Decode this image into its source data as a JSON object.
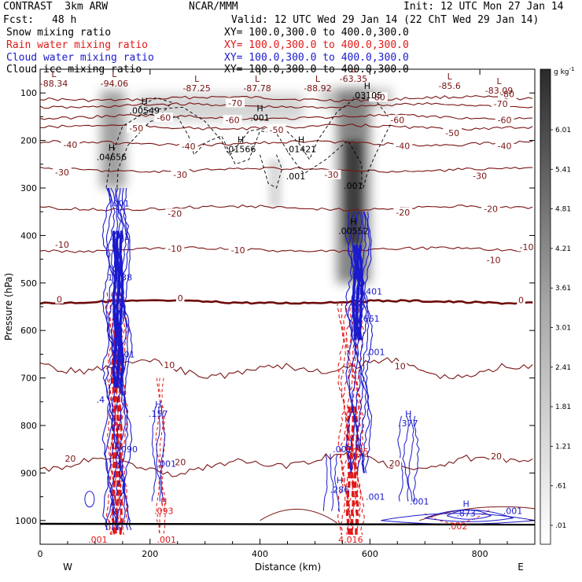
{
  "header": {
    "model": "CONTRAST  3km ARW",
    "center": "NCAR/MMM",
    "init": "Init: 12 UTC Mon 27 Jan 14",
    "fcst_label": "Fcst:",
    "fcst_value": "48 h",
    "valid": "Valid: 12 UTC Wed 29 Jan 14 (22 ChT Wed 29 Jan 14)"
  },
  "legend": {
    "items": [
      {
        "label": "Snow mixing ratio",
        "xy": "XY= 100.0,300.0 to 400.0,300.0",
        "color": "#000000"
      },
      {
        "label": "Rain water mixing ratio",
        "xy": "XY= 100.0,300.0 to 400.0,300.0",
        "color": "#e01818"
      },
      {
        "label": "Cloud water mixing ratio",
        "xy": "XY= 100.0,300.0 to 400.0,300.0",
        "color": "#1a1acc"
      },
      {
        "label": "Cloud ice mixing ratio",
        "xy": "XY= 100.0,300.0 to 400.0,300.0",
        "color": "#000000"
      }
    ]
  },
  "colors": {
    "temperature": "#7a1414",
    "freezing": "#6e0a0a",
    "rain": "#e01818",
    "cloud": "#1a1acc",
    "ice": "#000000"
  },
  "chart_data": {
    "type": "contour-cross-section",
    "xlabel": "Distance (km)",
    "ylabel": "Pressure (hPa)",
    "xlim": [
      0,
      900
    ],
    "ylim": [
      1050,
      50
    ],
    "x_ticks": [
      0,
      200,
      400,
      600,
      800
    ],
    "y_ticks": [
      100,
      200,
      300,
      400,
      500,
      600,
      700,
      800,
      900,
      1000
    ],
    "x_end_labels": {
      "west": "W",
      "east": "E"
    },
    "colorbar": {
      "unit": "g kg",
      "unit_sup": "-1",
      "ticks": [
        ".01",
        ".61",
        "1.21",
        "1.81",
        "2.41",
        "3.01",
        "3.61",
        "4.21",
        "4.81",
        "5.41",
        "6.01"
      ]
    },
    "temperature_contours": {
      "levels": [
        -80,
        -70,
        -60,
        -50,
        -40,
        -30,
        -20,
        -10,
        0,
        10,
        20
      ],
      "labels": [
        {
          "text": "-80",
          "x": 850,
          "p": 103
        },
        {
          "text": "-80",
          "x": 615,
          "p": 110
        },
        {
          "text": "-70",
          "x": 355,
          "p": 122
        },
        {
          "text": "-70",
          "x": 838,
          "p": 124
        },
        {
          "text": "-60",
          "x": 225,
          "p": 153
        },
        {
          "text": "-60",
          "x": 350,
          "p": 158
        },
        {
          "text": "-60",
          "x": 650,
          "p": 158
        },
        {
          "text": "-60",
          "x": 845,
          "p": 158
        },
        {
          "text": "-50",
          "x": 175,
          "p": 175
        },
        {
          "text": "-50",
          "x": 430,
          "p": 178
        },
        {
          "text": "-50",
          "x": 750,
          "p": 185
        },
        {
          "text": "-40",
          "x": 55,
          "p": 210
        },
        {
          "text": "-40",
          "x": 270,
          "p": 213
        },
        {
          "text": "-40",
          "x": 660,
          "p": 212
        },
        {
          "text": "-40",
          "x": 845,
          "p": 212
        },
        {
          "text": "-30",
          "x": 40,
          "p": 268
        },
        {
          "text": "-30",
          "x": 255,
          "p": 273
        },
        {
          "text": "-30",
          "x": 530,
          "p": 273
        },
        {
          "text": "-30",
          "x": 800,
          "p": 275
        },
        {
          "text": "-20",
          "x": 245,
          "p": 355
        },
        {
          "text": "-20",
          "x": 660,
          "p": 352
        },
        {
          "text": "-20",
          "x": 820,
          "p": 345
        },
        {
          "text": "-10",
          "x": 40,
          "p": 420
        },
        {
          "text": "-10",
          "x": 245,
          "p": 428
        },
        {
          "text": "-10",
          "x": 360,
          "p": 432
        },
        {
          "text": "-10",
          "x": 885,
          "p": 425
        },
        {
          "text": "-10",
          "x": 825,
          "p": 452
        },
        {
          "text": "0",
          "x": 35,
          "p": 535
        },
        {
          "text": "0",
          "x": 255,
          "p": 533
        },
        {
          "text": "0",
          "x": 875,
          "p": 537
        },
        {
          "text": "10",
          "x": 235,
          "p": 673
        },
        {
          "text": "10",
          "x": 655,
          "p": 676
        },
        {
          "text": "20",
          "x": 55,
          "p": 870
        },
        {
          "text": "20",
          "x": 255,
          "p": 878
        },
        {
          "text": "20",
          "x": 645,
          "p": 880
        },
        {
          "text": "20",
          "x": 830,
          "p": 865
        }
      ]
    },
    "extrema_labels": [
      {
        "mark": "L",
        "text": "-88.34",
        "x": 25,
        "p": 80,
        "series": "temperature"
      },
      {
        "mark": "L",
        "text": "-94.06",
        "x": 135,
        "p": 80,
        "series": "temperature"
      },
      {
        "mark": "L",
        "text": "-87.25",
        "x": 285,
        "p": 90,
        "series": "temperature"
      },
      {
        "mark": "L",
        "text": "-87.78",
        "x": 395,
        "p": 90,
        "series": "temperature"
      },
      {
        "mark": "L",
        "text": "-88.92",
        "x": 505,
        "p": 90,
        "series": "temperature"
      },
      {
        "mark": "L",
        "text": "-63.35",
        "x": 570,
        "p": 70,
        "series": "temperature"
      },
      {
        "mark": "L",
        "text": "-85.6",
        "x": 745,
        "p": 85,
        "series": "temperature"
      },
      {
        "mark": "L",
        "text": "-83.09",
        "x": 835,
        "p": 95,
        "series": "temperature"
      },
      {
        "mark": "H",
        "text": ".00549",
        "x": 190,
        "p": 137,
        "series": "ice"
      },
      {
        "mark": "H",
        "text": ".001",
        "x": 400,
        "p": 152,
        "series": "ice"
      },
      {
        "mark": "H",
        "text": ".03105",
        "x": 595,
        "p": 105,
        "series": "ice"
      },
      {
        "mark": "H",
        "text": ".01566",
        "x": 365,
        "p": 218,
        "series": "ice"
      },
      {
        "mark": "H",
        "text": ".01421",
        "x": 475,
        "p": 218,
        "series": "ice"
      },
      {
        "mark": "H",
        "text": ".04656",
        "x": 130,
        "p": 235,
        "series": "ice"
      },
      {
        "mark": "",
        "text": ".001",
        "x": 465,
        "p": 275,
        "series": "ice"
      },
      {
        "mark": "",
        "text": ".001",
        "x": 570,
        "p": 295,
        "series": "ice"
      },
      {
        "mark": "H",
        "text": ".00552",
        "x": 570,
        "p": 390,
        "series": "ice"
      },
      {
        "mark": "",
        "text": ".001",
        "x": 145,
        "p": 332,
        "series": "cloud"
      },
      {
        "mark": "",
        "text": ".001",
        "x": 145,
        "p": 403,
        "series": "cloud"
      },
      {
        "mark": "",
        "text": "1.138",
        "x": 145,
        "p": 488,
        "series": "cloud"
      },
      {
        "mark": "",
        "text": ".001",
        "x": 155,
        "p": 650,
        "series": "cloud"
      },
      {
        "mark": "",
        "text": ".4",
        "x": 110,
        "p": 745,
        "series": "cloud"
      },
      {
        "mark": "",
        "text": ".090",
        "x": 160,
        "p": 850,
        "series": "cloud"
      },
      {
        "mark": "H",
        "text": ".157",
        "x": 215,
        "p": 775,
        "series": "cloud"
      },
      {
        "mark": "",
        "text": ".001",
        "x": 230,
        "p": 880,
        "series": "cloud"
      },
      {
        "mark": "",
        "text": "1.401",
        "x": 600,
        "p": 518,
        "series": "cloud"
      },
      {
        "mark": "",
        "text": ".661",
        "x": 600,
        "p": 575,
        "series": "cloud"
      },
      {
        "mark": "",
        "text": ".001",
        "x": 610,
        "p": 645,
        "series": "cloud"
      },
      {
        "mark": "H",
        "text": ".377",
        "x": 670,
        "p": 795,
        "series": "cloud"
      },
      {
        "mark": "",
        "text": ".001",
        "x": 550,
        "p": 850,
        "series": "cloud"
      },
      {
        "mark": "",
        "text": ".095",
        "x": 580,
        "p": 855,
        "series": "rain"
      },
      {
        "mark": "H",
        "text": ".286",
        "x": 545,
        "p": 935,
        "series": "cloud"
      },
      {
        "mark": "",
        "text": ".001",
        "x": 610,
        "p": 950,
        "series": "cloud"
      },
      {
        "mark": "",
        "text": ".001",
        "x": 690,
        "p": 960,
        "series": "cloud"
      },
      {
        "mark": "H",
        "text": ".873",
        "x": 775,
        "p": 985,
        "series": "cloud"
      },
      {
        "mark": "",
        "text": ".001",
        "x": 860,
        "p": 980,
        "series": "cloud"
      },
      {
        "mark": "",
        "text": ".002",
        "x": 760,
        "p": 1012,
        "series": "rain"
      },
      {
        "mark": "H",
        "text": ".093",
        "x": 225,
        "p": 980,
        "series": "rain"
      },
      {
        "mark": "",
        "text": ".001",
        "x": 105,
        "p": 1040,
        "series": "rain"
      },
      {
        "mark": "",
        "text": ".001",
        "x": 230,
        "p": 1040,
        "series": "rain"
      },
      {
        "mark": "",
        "text": "4.016",
        "x": 565,
        "p": 1040,
        "series": "rain"
      }
    ]
  }
}
